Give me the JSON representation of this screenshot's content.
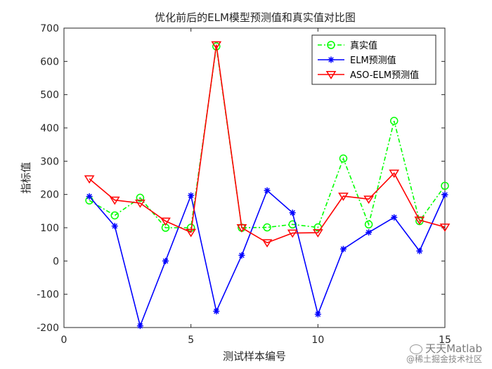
{
  "chart_data": {
    "type": "line",
    "title": "优化前后的ELM模型预测值和真实值对比图",
    "xlabel": "测试样本编号",
    "ylabel": "指标值",
    "xlim": [
      0,
      15
    ],
    "ylim": [
      -200,
      700
    ],
    "xticks": [
      0,
      5,
      10,
      15
    ],
    "yticks": [
      -200,
      -100,
      0,
      100,
      200,
      300,
      400,
      500,
      600,
      700
    ],
    "grid": false,
    "legend_position": "top-right",
    "x": [
      1,
      2,
      3,
      4,
      5,
      6,
      7,
      8,
      9,
      10,
      11,
      12,
      13,
      14,
      15
    ],
    "series": [
      {
        "name": "真实值",
        "color": "#00ff00",
        "marker": "circle",
        "line_style": "dash-dot",
        "values": [
          182,
          137,
          190,
          100,
          100,
          645,
          100,
          101,
          110,
          101,
          308,
          110,
          421,
          120,
          226
        ]
      },
      {
        "name": "ELM预测值",
        "color": "#0000ff",
        "marker": "star",
        "line_style": "solid",
        "values": [
          194,
          105,
          -195,
          0,
          197,
          -151,
          17,
          212,
          145,
          -160,
          36,
          86,
          131,
          30,
          199
        ]
      },
      {
        "name": "ASO-ELM预测值",
        "color": "#ff0000",
        "marker": "triangle-down",
        "line_style": "solid",
        "values": [
          247,
          183,
          174,
          120,
          86,
          650,
          100,
          55,
          84,
          85,
          195,
          186,
          264,
          123,
          102
        ]
      }
    ]
  },
  "watermark": {
    "line1": "天天Matlab",
    "line2": "@稀土掘金技术社区",
    "icon": "wechat-icon"
  }
}
